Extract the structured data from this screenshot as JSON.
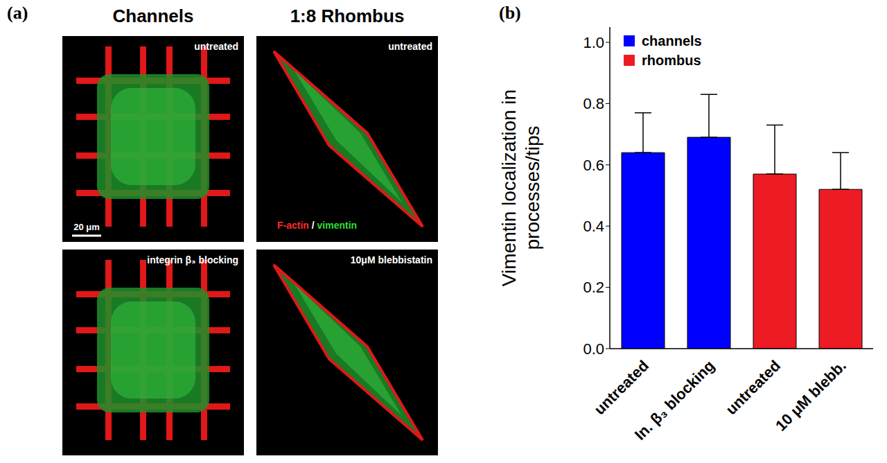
{
  "panel_a": {
    "label": "(a)",
    "column_titles": [
      "Channels",
      "1:8 Rhombus"
    ],
    "images": [
      {
        "caption": "untreated"
      },
      {
        "caption": "untreated"
      },
      {
        "caption": "integrin β₃ blocking"
      },
      {
        "caption": "10μM blebbistatin"
      }
    ],
    "scale_bar": "20 μm",
    "stain_labels": [
      {
        "text": "F-actin",
        "color": "#ff2a2a"
      },
      {
        "text": "/",
        "color": "#ffffff"
      },
      {
        "text": "vimentin",
        "color": "#33dd33"
      }
    ]
  },
  "panel_b_label": "(b)",
  "chart_data": {
    "type": "bar",
    "y_label": "Vimentin localization in processes/tips",
    "categories": [
      "untreated",
      "In. β₃ blocking",
      "untreated",
      "10 μM blebb."
    ],
    "series": [
      {
        "name": "channels",
        "color": "#0000ff",
        "values": [
          0.64,
          0.69,
          null,
          null
        ],
        "errors": [
          0.13,
          0.14,
          null,
          null
        ]
      },
      {
        "name": "rhombus",
        "color": "#ed1c24",
        "values": [
          null,
          null,
          0.57,
          0.52
        ],
        "errors": [
          null,
          null,
          0.16,
          0.12
        ]
      }
    ],
    "ylim": [
      0,
      1.05
    ],
    "yticks": [
      {
        "value": 0,
        "label": "0.0"
      },
      {
        "value": 0.2,
        "label": "0.2"
      },
      {
        "value": 0.4,
        "label": "0.4"
      },
      {
        "value": 0.6,
        "label": "0.6"
      },
      {
        "value": 0.8,
        "label": "0.8"
      },
      {
        "value": 1,
        "label": "1.0"
      }
    ],
    "legend": "upper left"
  }
}
